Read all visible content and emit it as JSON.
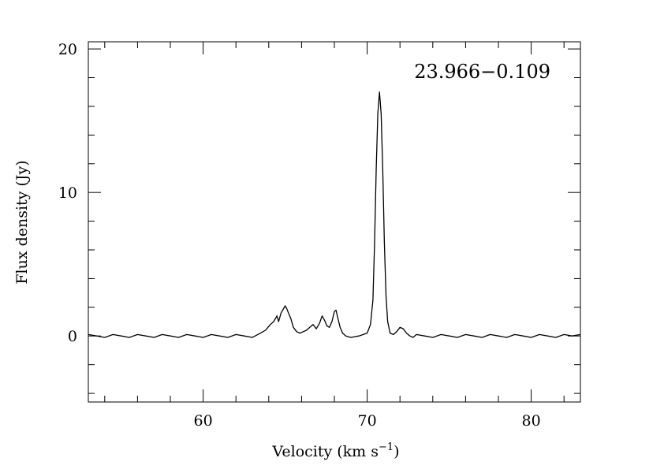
{
  "chart_data": {
    "type": "line",
    "title": "",
    "annotation": "23.966−0.109",
    "xlabel": "Velocity (km s",
    "xlabel_sup": "−1",
    "xlabel_close": ")",
    "ylabel": "Flux density (Jy)",
    "xlim": [
      53,
      83
    ],
    "ylim": [
      -4.6,
      20.5
    ],
    "xticks": [
      60,
      70,
      80
    ],
    "yticks": [
      0,
      10,
      20
    ],
    "grid": false,
    "series": [
      {
        "x": [
          53.0,
          53.5,
          54.0,
          54.5,
          55.0,
          55.5,
          56.0,
          56.5,
          57.0,
          57.5,
          58.0,
          58.5,
          59.0,
          59.5,
          60.0,
          60.5,
          61.0,
          61.5,
          62.0,
          62.5,
          63.0,
          63.5,
          63.8,
          64.1,
          64.3,
          64.5,
          64.6,
          64.75,
          64.9,
          65.0,
          65.1,
          65.2,
          65.35,
          65.5,
          65.7,
          65.9,
          66.1,
          66.3,
          66.5,
          66.7,
          66.9,
          67.1,
          67.25,
          67.4,
          67.55,
          67.7,
          67.85,
          68.0,
          68.1,
          68.2,
          68.35,
          68.5,
          68.7,
          69.0,
          69.5,
          70.0,
          70.2,
          70.35,
          70.45,
          70.55,
          70.65,
          70.75,
          70.85,
          70.95,
          71.05,
          71.15,
          71.25,
          71.4,
          71.6,
          71.8,
          72.0,
          72.2,
          72.4,
          72.6,
          72.8,
          73.0,
          73.5,
          74.0,
          74.5,
          75.0,
          75.5,
          76.0,
          76.5,
          77.0,
          77.5,
          78.0,
          78.5,
          79.0,
          79.5,
          80.0,
          80.5,
          81.0,
          81.5,
          82.0,
          82.5,
          83.0
        ],
        "y": [
          0.1,
          0.0,
          -0.1,
          0.1,
          0.0,
          -0.1,
          0.1,
          0.0,
          -0.1,
          0.1,
          0.0,
          -0.1,
          0.1,
          0.0,
          -0.1,
          0.1,
          0.0,
          -0.1,
          0.1,
          0.0,
          -0.1,
          0.2,
          0.4,
          0.8,
          1.0,
          1.4,
          1.0,
          1.6,
          1.9,
          2.1,
          1.9,
          1.6,
          1.2,
          0.6,
          0.3,
          0.2,
          0.3,
          0.4,
          0.6,
          0.8,
          0.5,
          0.9,
          1.4,
          1.1,
          0.7,
          0.6,
          1.0,
          1.7,
          1.8,
          1.3,
          0.6,
          0.2,
          0.0,
          -0.1,
          0.0,
          0.2,
          0.8,
          2.5,
          6.5,
          11.5,
          15.5,
          17.0,
          15.5,
          11.5,
          6.5,
          2.8,
          1.0,
          0.2,
          0.1,
          0.3,
          0.6,
          0.5,
          0.2,
          0.0,
          -0.1,
          0.1,
          0.0,
          -0.1,
          0.1,
          0.0,
          -0.1,
          0.1,
          0.0,
          -0.1,
          0.1,
          0.0,
          -0.1,
          0.1,
          0.0,
          -0.1,
          0.1,
          0.0,
          -0.1,
          0.1,
          0.0,
          0.1
        ]
      }
    ]
  }
}
